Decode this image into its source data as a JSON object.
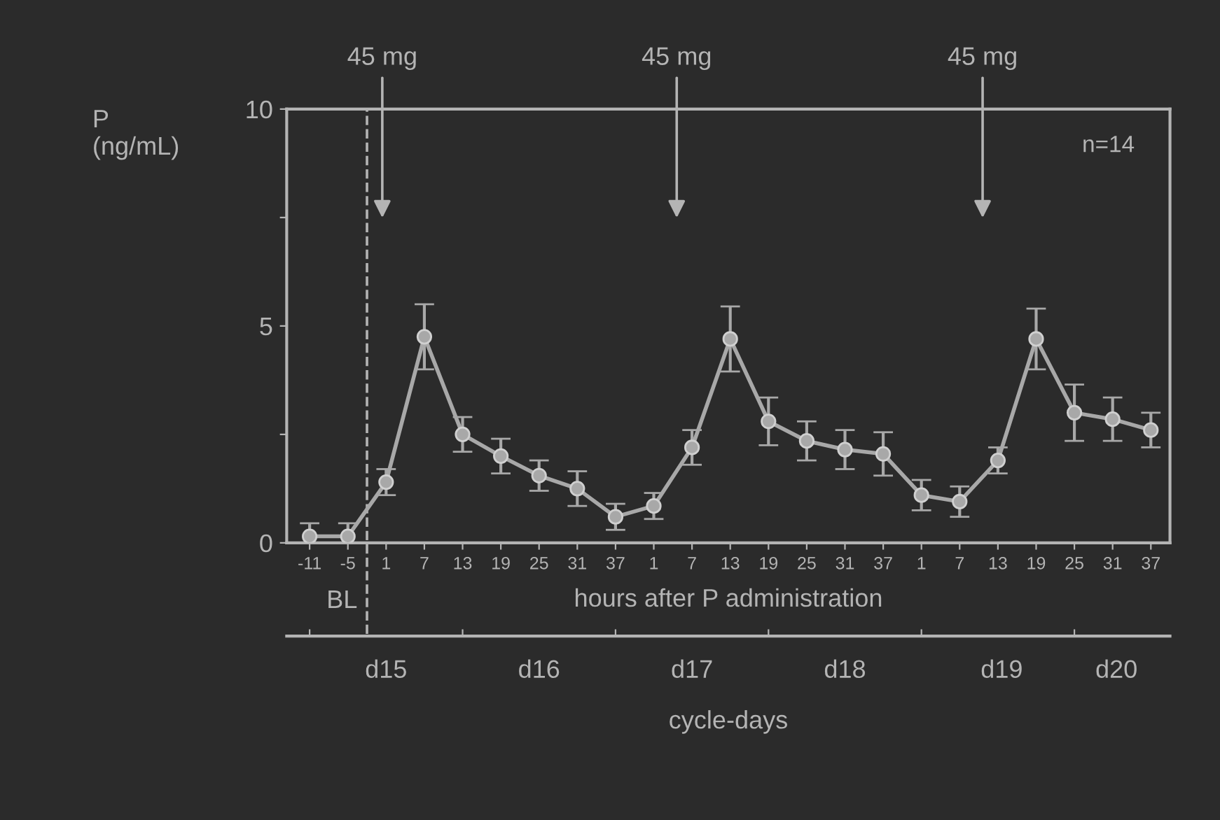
{
  "chart_data": {
    "type": "line",
    "ylabel": "P\n(ng/mL)",
    "xlabel": "hours after P administration",
    "x2label": "cycle-days",
    "categories": [
      "-11",
      "-5",
      "1",
      "7",
      "13",
      "19",
      "25",
      "31",
      "37",
      "1",
      "7",
      "13",
      "19",
      "25",
      "31",
      "37",
      "1",
      "7",
      "13",
      "19",
      "25",
      "31",
      "37"
    ],
    "series": [
      {
        "color": "#a8a8a8",
        "values": [
          0.15,
          0.15,
          1.4,
          4.75,
          2.5,
          2.0,
          1.55,
          1.25,
          0.6,
          0.85,
          2.2,
          4.7,
          2.8,
          2.35,
          2.15,
          2.05,
          1.1,
          0.95,
          1.9,
          4.7,
          3.0,
          2.85,
          2.6
        ],
        "errors": [
          0.3,
          0.3,
          0.3,
          0.75,
          0.4,
          0.4,
          0.35,
          0.4,
          0.3,
          0.3,
          0.4,
          0.75,
          0.55,
          0.45,
          0.45,
          0.5,
          0.35,
          0.35,
          0.3,
          0.7,
          0.65,
          0.5,
          0.4
        ]
      }
    ],
    "ylim": [
      0,
      10
    ],
    "yticks": [
      0,
      {
        "value": 2.5,
        "label": null
      },
      5,
      {
        "value": 7.5,
        "label": null
      },
      10
    ],
    "annotations": [
      "n=14",
      "45 mg",
      "45 mg",
      "45 mg",
      "BL",
      "d15",
      "d16",
      "d17",
      "d18",
      "d19",
      "d20"
    ],
    "marker": "circle",
    "line_style": "solid",
    "grid": false,
    "legend": false
  }
}
